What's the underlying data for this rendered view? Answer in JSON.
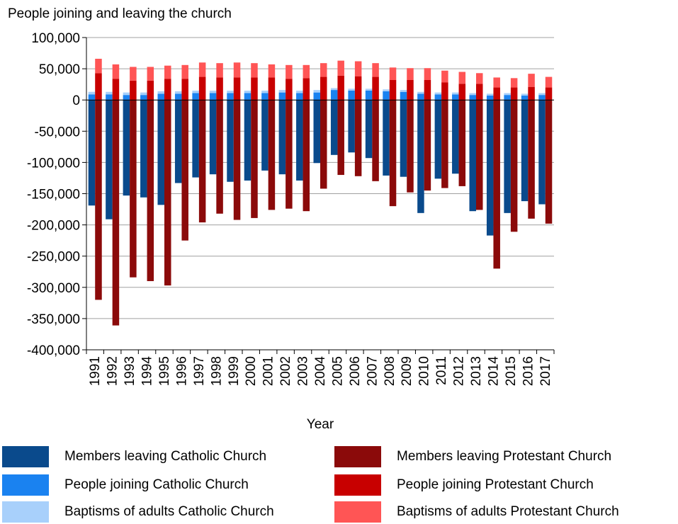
{
  "chart_data": {
    "type": "bar",
    "title": "People joining and leaving the church",
    "xlabel": "Year",
    "ylabel": "",
    "ylim": [
      -400000,
      100000
    ],
    "ytick_values": [
      100000,
      50000,
      0,
      -50000,
      -100000,
      -150000,
      -200000,
      -250000,
      -300000,
      -350000,
      -400000
    ],
    "ytick_labels": [
      "100,000",
      "50,000",
      "0",
      "-50,000",
      "-100,000",
      "-150,000",
      "-200,000",
      "-250,000",
      "-300,000",
      "-350,000",
      "-400,000"
    ],
    "grid": true,
    "legend_position": "bottom",
    "categories": [
      "1991",
      "1992",
      "1993",
      "1994",
      "1995",
      "1996",
      "1997",
      "1998",
      "1999",
      "2000",
      "2001",
      "2002",
      "2003",
      "2004",
      "2005",
      "2006",
      "2007",
      "2008",
      "2009",
      "2010",
      "2011",
      "2012",
      "2013",
      "2014",
      "2015",
      "2016",
      "2017"
    ],
    "series": [
      {
        "name": "Members leaving Catholic Church",
        "color": "#0a4a8c",
        "group": "catholic",
        "sign": "negative",
        "values": [
          -169000,
          -191000,
          -153000,
          -156000,
          -168000,
          -133000,
          -124000,
          -119000,
          -131000,
          -129000,
          -113000,
          -119000,
          -129000,
          -101000,
          -88000,
          -84000,
          -93000,
          -121000,
          -123000,
          -181000,
          -126000,
          -118000,
          -178000,
          -217000,
          -181000,
          -162000,
          -167000
        ]
      },
      {
        "name": "People joining Catholic Church",
        "color": "#1a82f0",
        "group": "catholic",
        "sign": "positive",
        "values": [
          9000,
          9000,
          8000,
          8000,
          10000,
          10000,
          11000,
          11000,
          11000,
          11000,
          11000,
          12000,
          11000,
          12000,
          16000,
          15000,
          15000,
          14000,
          13000,
          10000,
          9000,
          9000,
          8000,
          7000,
          8000,
          7000,
          8000
        ]
      },
      {
        "name": "Baptisms of adults Catholic Church",
        "color": "#a8d0fb",
        "group": "catholic",
        "sign": "positive",
        "values": [
          4000,
          4000,
          4000,
          4000,
          4000,
          4000,
          4000,
          4000,
          4000,
          4000,
          4000,
          4000,
          4000,
          4000,
          3000,
          3000,
          3000,
          3000,
          3000,
          3000,
          3000,
          3000,
          3000,
          3000,
          3000,
          3000,
          3000
        ]
      },
      {
        "name": "Members leaving Protestant Church",
        "color": "#8b0a0a",
        "group": "protestant",
        "sign": "negative",
        "values": [
          -320000,
          -361000,
          -284000,
          -290000,
          -297000,
          -225000,
          -196000,
          -182000,
          -192000,
          -189000,
          -176000,
          -174000,
          -178000,
          -142000,
          -120000,
          -122000,
          -130000,
          -170000,
          -148000,
          -145000,
          -141000,
          -138000,
          -176000,
          -270000,
          -211000,
          -190000,
          -198000
        ]
      },
      {
        "name": "People joining Protestant Church",
        "color": "#c80000",
        "group": "protestant",
        "sign": "positive",
        "values": [
          43000,
          34000,
          31000,
          31000,
          34000,
          34000,
          37000,
          36000,
          36000,
          36000,
          36000,
          34000,
          35000,
          37000,
          39000,
          38000,
          37000,
          32000,
          32000,
          32000,
          28000,
          26000,
          26000,
          20000,
          20000,
          21000,
          20000
        ]
      },
      {
        "name": "Baptisms of adults Protestant Church",
        "color": "#ff5555",
        "group": "protestant",
        "sign": "positive",
        "values": [
          23000,
          23000,
          22000,
          22000,
          21000,
          22000,
          23000,
          23000,
          24000,
          23000,
          21000,
          22000,
          21000,
          22000,
          24000,
          24000,
          22000,
          20000,
          19000,
          19000,
          19000,
          19000,
          17000,
          16000,
          15000,
          21000,
          17000
        ]
      }
    ]
  }
}
